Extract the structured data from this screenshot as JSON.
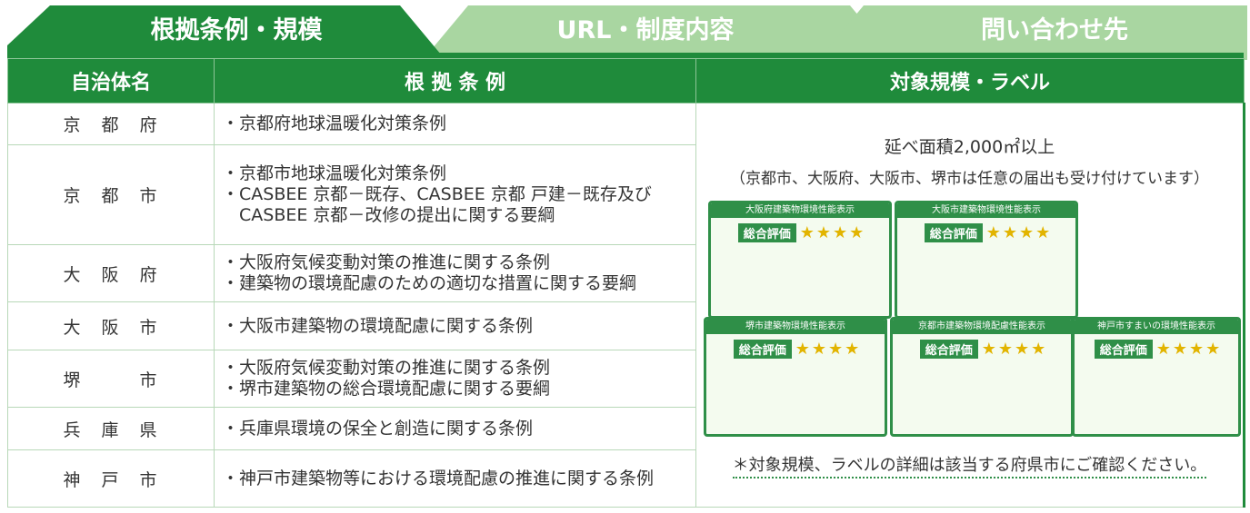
{
  "tabs": [
    "根拠条例・規模",
    "URL・制度内容",
    "問い合わせ先"
  ],
  "table": {
    "headers": [
      "自治体名",
      "根 拠 条 例",
      "対象規模・ラベル"
    ],
    "rows": [
      {
        "name": "京　都　府",
        "items": [
          "・京都府地球温暖化対策条例"
        ]
      },
      {
        "name": "京　都　市",
        "items": [
          "・京都市地球温暖化対策条例",
          "・CASBEE 京都－既存、CASBEE 京都 戸建－既存及びCASBEE 京都－改修の提出に関する要綱"
        ]
      },
      {
        "name": "大　阪　府",
        "items": [
          "・大阪府気候変動対策の推進に関する条例",
          "・建築物の環境配慮のための適切な措置に関する要綱"
        ]
      },
      {
        "name": "大　阪　市",
        "items": [
          "・大阪市建築物の環境配慮に関する条例"
        ]
      },
      {
        "name": "堺　　　市",
        "items": [
          "・大阪府気候変動対策の推進に関する条例",
          "・堺市建築物の総合環境配慮に関する要綱"
        ]
      },
      {
        "name": "兵　庫　県",
        "items": [
          "・兵庫県環境の保全と創造に関する条例"
        ]
      },
      {
        "name": "神　戸　市",
        "items": [
          "・神戸市建築物等における環境配慮の推進に関する条例"
        ]
      }
    ]
  },
  "scope": {
    "main": "延べ面積2,000㎡以上",
    "note": "（京都市、大阪府、大阪市、堺市は任意の届出も受け付けています）",
    "footnote": "＊対象規模、ラベルの詳細は該当する府県市にご確認ください。"
  },
  "labels": [
    {
      "title": "大阪府建築物環境性能表示",
      "rating": "総合評価"
    },
    {
      "title": "大阪市建築物環境性能表示",
      "rating": "総合評価"
    },
    {
      "title": "堺市建築物環境性能表示",
      "rating": "総合評価"
    },
    {
      "title": "京都市建築物環境配慮性能表示",
      "rating": "総合評価"
    },
    {
      "title": "神戸市すまいの環境性能表示",
      "rating": "総合評価"
    }
  ]
}
